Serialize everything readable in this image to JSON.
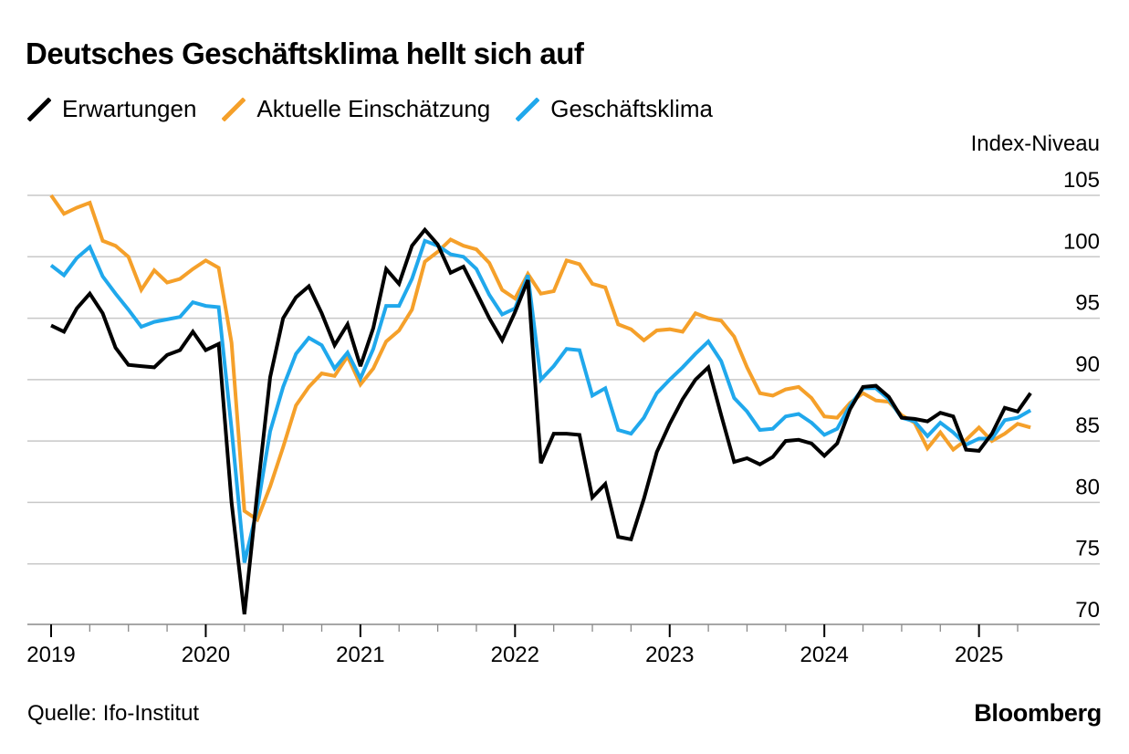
{
  "title": "Deutsches Geschäftsklima hellt sich auf",
  "unit_label": "Index-Niveau",
  "source": "Quelle: Ifo-Institut",
  "brand": "Bloomberg",
  "colors": {
    "Erwartungen": "#000000",
    "Aktuelle Einschätzung": "#f5a02a",
    "Geschäftsklima": "#20a8ec",
    "grid": "#c8c8c8",
    "axis": "#8a8a8a"
  },
  "chart_data": {
    "type": "line",
    "title": "Deutsches Geschäftsklima hellt sich auf",
    "ylabel": "Index-Niveau",
    "xlabel": "",
    "ylim": [
      70,
      105
    ],
    "yticks": [
      70,
      75,
      80,
      85,
      90,
      95,
      100,
      105
    ],
    "xticks": [
      "2019",
      "2020",
      "2021",
      "2022",
      "2023",
      "2024",
      "2025"
    ],
    "x_start": "2019-01",
    "x_end": "2025-06",
    "grid": true,
    "legend_position": "top-left",
    "x": [
      "2019-01",
      "2019-02",
      "2019-03",
      "2019-04",
      "2019-05",
      "2019-06",
      "2019-07",
      "2019-08",
      "2019-09",
      "2019-10",
      "2019-11",
      "2019-12",
      "2020-01",
      "2020-02",
      "2020-03",
      "2020-04",
      "2020-05",
      "2020-06",
      "2020-07",
      "2020-08",
      "2020-09",
      "2020-10",
      "2020-11",
      "2020-12",
      "2021-01",
      "2021-02",
      "2021-03",
      "2021-04",
      "2021-05",
      "2021-06",
      "2021-07",
      "2021-08",
      "2021-09",
      "2021-10",
      "2021-11",
      "2021-12",
      "2022-01",
      "2022-02",
      "2022-03",
      "2022-04",
      "2022-05",
      "2022-06",
      "2022-07",
      "2022-08",
      "2022-09",
      "2022-10",
      "2022-11",
      "2022-12",
      "2023-01",
      "2023-02",
      "2023-03",
      "2023-04",
      "2023-05",
      "2023-06",
      "2023-07",
      "2023-08",
      "2023-09",
      "2023-10",
      "2023-11",
      "2023-12",
      "2024-01",
      "2024-02",
      "2024-03",
      "2024-04",
      "2024-05",
      "2024-06",
      "2024-07",
      "2024-08",
      "2024-09",
      "2024-10",
      "2024-11",
      "2024-12",
      "2025-01",
      "2025-02",
      "2025-03",
      "2025-04",
      "2025-05",
      "2025-06"
    ],
    "series": [
      {
        "name": "Erwartungen",
        "values": [
          94.4,
          93.9,
          95.8,
          97.0,
          95.4,
          92.6,
          91.2,
          91.1,
          91.0,
          92.0,
          92.4,
          93.9,
          92.4,
          92.9,
          80.0,
          70.9,
          80.8,
          90.2,
          95.0,
          96.7,
          97.6,
          95.4,
          92.8,
          94.5,
          91.1,
          94.2,
          99.0,
          97.8,
          100.9,
          102.2,
          101.0,
          98.7,
          99.2,
          97.1,
          95.0,
          93.2,
          95.5,
          98.1,
          83.2,
          85.6,
          85.6,
          85.5,
          80.4,
          81.5,
          77.2,
          77.0,
          80.3,
          84.1,
          86.4,
          88.4,
          90.0,
          91.0,
          87.1,
          83.3,
          83.6,
          83.1,
          83.7,
          85.0,
          85.1,
          84.8,
          83.8,
          84.8,
          87.6,
          89.4,
          89.5,
          88.6,
          86.9,
          86.8,
          86.6,
          87.3,
          87.0,
          84.3,
          84.2,
          85.6,
          87.7,
          87.4,
          88.9,
          null
        ]
      },
      {
        "name": "Aktuelle Einschätzung",
        "values": [
          105.0,
          103.5,
          104.0,
          104.4,
          101.3,
          100.9,
          100.0,
          97.3,
          98.9,
          97.9,
          98.2,
          99.0,
          99.7,
          99.1,
          93.0,
          79.3,
          78.6,
          81.3,
          84.5,
          87.9,
          89.4,
          90.5,
          90.3,
          91.9,
          89.6,
          90.9,
          93.1,
          94.0,
          95.7,
          99.6,
          100.4,
          101.4,
          100.9,
          100.6,
          99.5,
          97.3,
          96.6,
          98.6,
          97.0,
          97.2,
          99.7,
          99.4,
          97.8,
          97.5,
          94.5,
          94.1,
          93.2,
          94.0,
          94.1,
          93.9,
          95.4,
          95.0,
          94.8,
          93.5,
          91.0,
          88.9,
          88.7,
          89.2,
          89.4,
          88.5,
          87.0,
          86.9,
          88.1,
          88.9,
          88.3,
          88.2,
          87.1,
          86.5,
          84.4,
          85.7,
          84.3,
          85.1,
          86.1,
          85.0,
          85.6,
          86.4,
          86.1,
          null
        ]
      },
      {
        "name": "Geschäftsklima",
        "values": [
          99.3,
          98.5,
          99.9,
          100.8,
          98.4,
          97.0,
          95.7,
          94.3,
          94.7,
          94.9,
          95.1,
          96.3,
          96.0,
          95.9,
          86.0,
          75.1,
          79.5,
          85.8,
          89.4,
          92.1,
          93.4,
          92.8,
          90.9,
          92.2,
          90.1,
          92.5,
          96.0,
          96.0,
          98.2,
          101.3,
          100.9,
          100.2,
          100.0,
          99.0,
          96.9,
          95.3,
          95.8,
          98.5,
          90.0,
          91.1,
          92.5,
          92.4,
          88.7,
          89.3,
          85.9,
          85.6,
          86.9,
          88.9,
          90.0,
          91.0,
          92.1,
          93.1,
          91.5,
          88.5,
          87.4,
          85.9,
          86.0,
          87.0,
          87.2,
          86.5,
          85.5,
          86.0,
          87.9,
          89.3,
          89.3,
          88.4,
          86.9,
          86.6,
          85.4,
          86.5,
          85.7,
          84.7,
          85.2,
          85.2,
          86.7,
          86.9,
          87.5,
          null
        ]
      }
    ]
  }
}
